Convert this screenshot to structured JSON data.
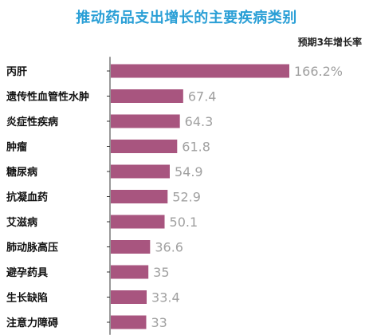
{
  "chart_data": {
    "type": "bar",
    "orientation": "horizontal",
    "title": "推动药品支出增长的主要疾病类别",
    "subtitle": "预期3年增长率",
    "categories": [
      "丙肝",
      "遗传性血管性水肿",
      "炎症性疾病",
      "肿瘤",
      "糖尿病",
      "抗凝血药",
      "艾滋病",
      "肺动脉高压",
      "避孕药具",
      "生长缺陷",
      "注意力障碍"
    ],
    "values": [
      166.2,
      67.4,
      64.3,
      61.8,
      54.9,
      52.9,
      50.1,
      36.6,
      35,
      33.4,
      33
    ],
    "value_labels": [
      "166.2%",
      "67.4",
      "64.3",
      "61.8",
      "54.9",
      "52.9",
      "50.1",
      "36.6",
      "35",
      "33.4",
      "33"
    ],
    "bar_color": "#a8557f",
    "axis_color": "#333333",
    "title_color": "#2a9fd6",
    "value_label_color": "#a0a0a0",
    "xlim": [
      0,
      166.2
    ],
    "grid": false,
    "legend": "none"
  }
}
